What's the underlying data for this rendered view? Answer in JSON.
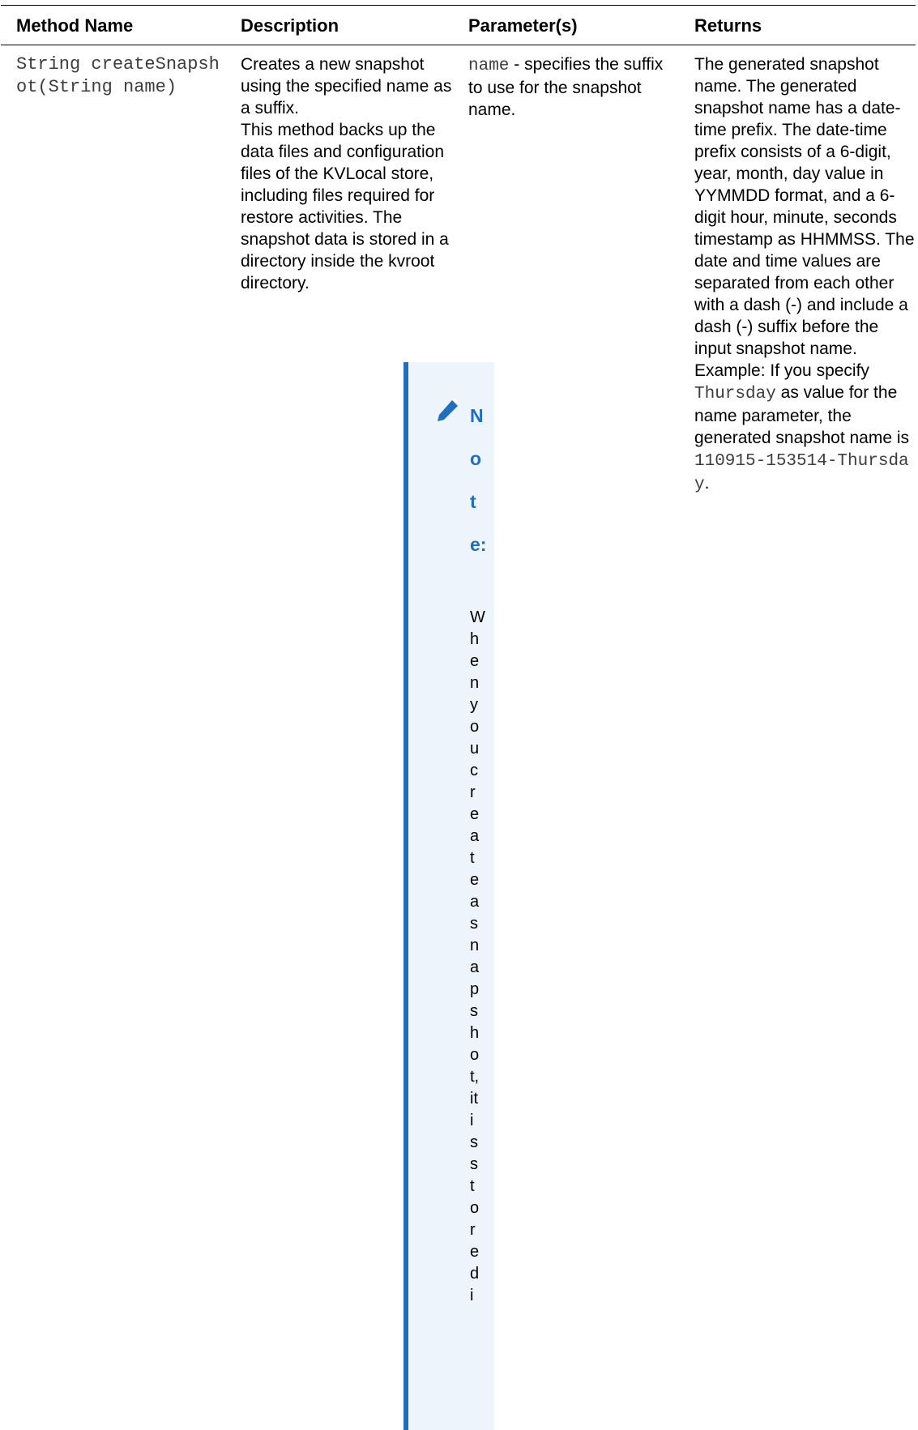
{
  "table": {
    "headers": {
      "method_name": "Method Name",
      "description": "Description",
      "parameters": "Parameter(s)",
      "returns": "Returns"
    },
    "row": {
      "method_signature": "String createSnapshot(String name)",
      "description_line1": "Creates a new snapshot using the specified name as a suffix.",
      "description_line2": "This method backs up the data files and configuration files of the KVLocal store, including files required for restore activities. The snapshot data is stored in a directory inside the kvroot directory.",
      "param_code": "name",
      "param_text": " - specifies the suffix to use for the snapshot name.",
      "returns_text1": "The generated snapshot name. The generated snapshot name has a date-time prefix. The date-time prefix consists of a 6-digit, year, month, day value in YYMMDD format, and a 6-digit hour, minute, seconds timestamp as HHMMSS. The date and time values are separated from each other with a dash (-) and include a dash (-) suffix before the input snapshot name. Example: If you specify ",
      "returns_code1": "Thursday",
      "returns_text2": " as value for the name parameter, the generated snapshot name is ",
      "returns_code2": "110915-153514-Thursday",
      "returns_text3": "."
    }
  },
  "note": {
    "icon": "pencil-icon",
    "label": "Note:",
    "text": "When you create a snapshot, it is stored i"
  },
  "colors": {
    "note_accent": "#1f6fbe",
    "note_background": "#eef4fb"
  }
}
